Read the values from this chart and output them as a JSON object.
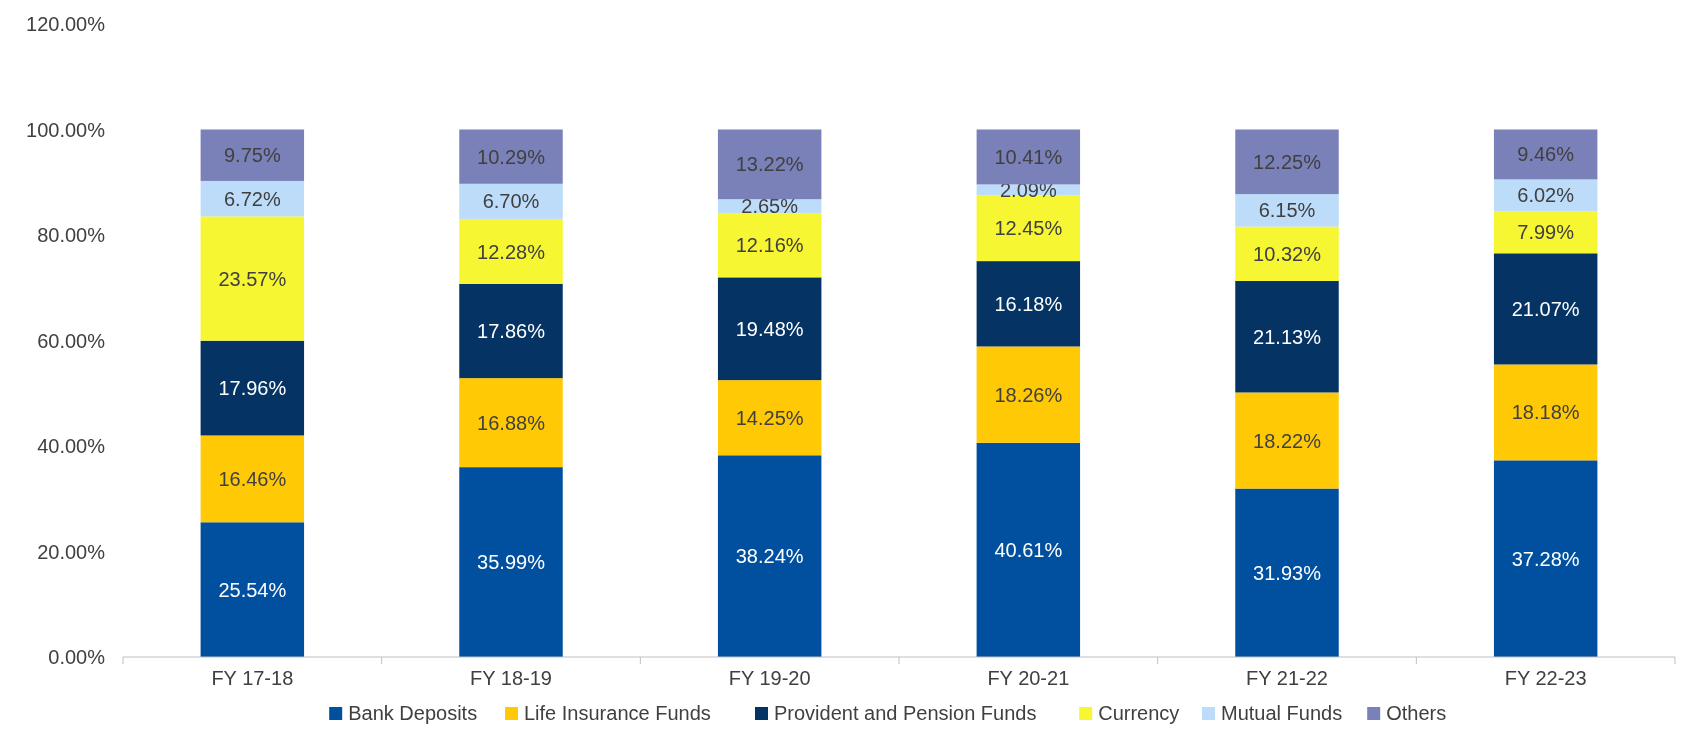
{
  "chart_data": {
    "type": "bar",
    "stacked": true,
    "categories": [
      "FY 17-18",
      "FY 18-19",
      "FY 19-20",
      "FY 20-21",
      "FY 21-22",
      "FY 22-23"
    ],
    "series": [
      {
        "name": "Bank Deposits",
        "color": "#00509f",
        "values": [
          25.54,
          35.99,
          38.24,
          40.61,
          31.93,
          37.28
        ],
        "value_labels": [
          "25.54%",
          "35.99%",
          "38.24%",
          "40.61%",
          "31.93%",
          "37.28%"
        ]
      },
      {
        "name": "Life Insurance Funds",
        "color": "#ffc906",
        "values": [
          16.46,
          16.88,
          14.25,
          18.26,
          18.22,
          18.18
        ],
        "value_labels": [
          "16.46%",
          "16.88%",
          "14.25%",
          "18.26%",
          "18.22%",
          "18.18%"
        ]
      },
      {
        "name": "Provident and Pension Funds",
        "color": "#053363",
        "values": [
          17.96,
          17.86,
          19.48,
          16.18,
          21.13,
          21.07
        ],
        "value_labels": [
          "17.96%",
          "17.86%",
          "19.48%",
          "16.18%",
          "21.13%",
          "21.07%"
        ]
      },
      {
        "name": "Currency",
        "color": "#f7f633",
        "values": [
          23.57,
          12.28,
          12.16,
          12.45,
          10.32,
          7.99
        ],
        "value_labels": [
          "23.57%",
          "12.28%",
          "12.16%",
          "12.45%",
          "10.32%",
          "7.99%"
        ]
      },
      {
        "name": "Mutual Funds",
        "color": "#bcdcfa",
        "values": [
          6.72,
          6.7,
          2.65,
          2.09,
          6.15,
          6.02
        ],
        "value_labels": [
          "6.72%",
          "6.70%",
          "2.65%",
          "2.09%",
          "6.15%",
          "6.02%"
        ]
      },
      {
        "name": "Others",
        "color": "#7a80b8",
        "values": [
          9.75,
          10.29,
          13.22,
          10.41,
          12.25,
          9.46
        ],
        "value_labels": [
          "9.75%",
          "10.29%",
          "13.22%",
          "10.41%",
          "12.25%",
          "9.46%"
        ]
      }
    ],
    "ylim": [
      0,
      120
    ],
    "yticks": [
      {
        "value": 0,
        "label": "0.00%"
      },
      {
        "value": 20,
        "label": "20.00%"
      },
      {
        "value": 40,
        "label": "40.00%"
      },
      {
        "value": 60,
        "label": "60.00%"
      },
      {
        "value": 80,
        "label": "80.00%"
      },
      {
        "value": 100,
        "label": "100.00%"
      },
      {
        "value": 120,
        "label": "120.00%"
      }
    ],
    "grid": false,
    "legend": "bottom"
  }
}
